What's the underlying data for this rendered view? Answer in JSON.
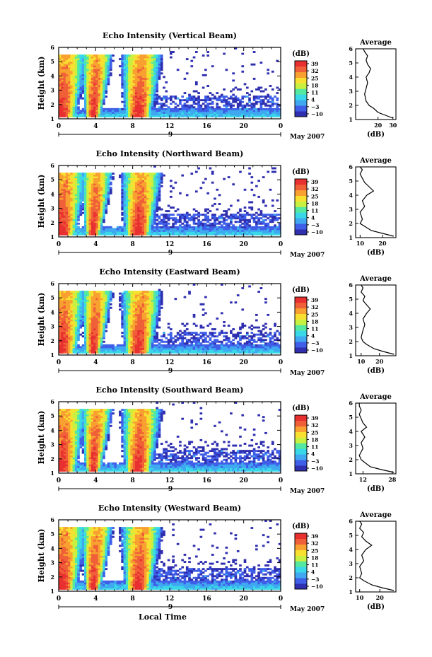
{
  "figure": {
    "date_label": "May 2007",
    "day_label": "9",
    "bottom_xlabel": "Local Time"
  },
  "colorbar": {
    "unit": "(dB)",
    "ticks": [
      "39",
      "32",
      "25",
      "18",
      "11",
      "4",
      "−3",
      "−10"
    ],
    "colors": [
      "#2f2fb0",
      "#3f5fe8",
      "#3fa8f0",
      "#38d8e8",
      "#55e8a0",
      "#c8f040",
      "#f8e030",
      "#f8a030",
      "#f06038",
      "#e83030"
    ]
  },
  "chart_data": [
    {
      "type": "heatmap",
      "title": "Echo Intensity (Vertical Beam)",
      "ylabel": "Height (km)",
      "xlabel": "",
      "x_ticks": [
        "0",
        "4",
        "8",
        "12",
        "16",
        "20",
        "0"
      ],
      "y_ticks": [
        "1",
        "2",
        "3",
        "4",
        "5",
        "6"
      ],
      "xlim": [
        0,
        24
      ],
      "ylim": [
        1,
        6
      ],
      "units": "dB",
      "clim": [
        -10,
        39
      ],
      "intense_periods_hours": [
        [
          0,
          1.5
        ],
        [
          3.5,
          4.3
        ],
        [
          7.8,
          10.2
        ]
      ],
      "profile": {
        "type": "line",
        "title": "Average",
        "xlabel": "(dB)",
        "x_ticks": [
          "20",
          "30"
        ],
        "y_ticks": [
          "1",
          "2",
          "3",
          "4",
          "5",
          "6"
        ],
        "xlim": [
          5,
          32
        ],
        "ylim": [
          1,
          6
        ],
        "x": [
          30,
          25,
          20,
          17,
          14,
          12,
          11,
          12,
          13,
          12,
          14,
          15,
          13,
          12,
          13,
          11,
          10
        ],
        "y": [
          1.1,
          1.3,
          1.5,
          1.8,
          2.0,
          2.3,
          2.8,
          3.2,
          3.6,
          4.0,
          4.3,
          4.6,
          4.9,
          5.2,
          5.5,
          5.8,
          6.0
        ]
      }
    },
    {
      "type": "heatmap",
      "title": "Echo Intensity (Northward Beam)",
      "ylabel": "Height (km)",
      "xlabel": "",
      "x_ticks": [
        "0",
        "4",
        "8",
        "12",
        "16",
        "20",
        "0"
      ],
      "y_ticks": [
        "1",
        "2",
        "3",
        "4",
        "5",
        "6"
      ],
      "xlim": [
        0,
        24
      ],
      "ylim": [
        1,
        6
      ],
      "units": "dB",
      "clim": [
        -10,
        39
      ],
      "intense_periods_hours": [
        [
          0,
          1.5
        ],
        [
          3.5,
          4.3
        ],
        [
          7.8,
          10.2
        ]
      ],
      "profile": {
        "type": "line",
        "title": "Average",
        "xlabel": "(dB)",
        "x_ticks": [
          "10",
          "20"
        ],
        "y_ticks": [
          "1",
          "2",
          "3",
          "4",
          "5",
          "6"
        ],
        "xlim": [
          8,
          26
        ],
        "ylim": [
          1,
          6
        ],
        "x": [
          25,
          20,
          15,
          12,
          10,
          11,
          10,
          12,
          11,
          13,
          16,
          14,
          12,
          11,
          10,
          11,
          10
        ],
        "y": [
          1.1,
          1.3,
          1.5,
          1.8,
          2.0,
          2.3,
          2.8,
          3.2,
          3.6,
          4.0,
          4.3,
          4.6,
          4.9,
          5.2,
          5.5,
          5.8,
          6.0
        ]
      }
    },
    {
      "type": "heatmap",
      "title": "Echo Intensity (Eastward Beam)",
      "ylabel": "Height (km)",
      "xlabel": "",
      "x_ticks": [
        "0",
        "4",
        "8",
        "12",
        "16",
        "20",
        "0"
      ],
      "y_ticks": [
        "1",
        "2",
        "3",
        "4",
        "5",
        "6"
      ],
      "xlim": [
        0,
        24
      ],
      "ylim": [
        1,
        6
      ],
      "units": "dB",
      "clim": [
        -10,
        39
      ],
      "intense_periods_hours": [
        [
          0,
          1.5
        ],
        [
          3.5,
          4.3
        ],
        [
          7.8,
          10.2
        ]
      ],
      "profile": {
        "type": "line",
        "title": "Average",
        "xlabel": "(dB)",
        "x_ticks": [
          "10",
          "20"
        ],
        "y_ticks": [
          "1",
          "2",
          "3",
          "4",
          "5",
          "6"
        ],
        "xlim": [
          7,
          29
        ],
        "ylim": [
          1,
          6
        ],
        "x": [
          28,
          22,
          17,
          13,
          11,
          10,
          11,
          12,
          11,
          13,
          15,
          13,
          11,
          12,
          10,
          11,
          10
        ],
        "y": [
          1.1,
          1.3,
          1.5,
          1.8,
          2.0,
          2.3,
          2.8,
          3.2,
          3.6,
          4.0,
          4.3,
          4.6,
          4.9,
          5.2,
          5.5,
          5.8,
          6.0
        ]
      }
    },
    {
      "type": "heatmap",
      "title": "Echo Intensity (Southward Beam)",
      "ylabel": "Height (km)",
      "xlabel": "",
      "x_ticks": [
        "0",
        "4",
        "8",
        "12",
        "16",
        "20",
        "0"
      ],
      "y_ticks": [
        "1",
        "2",
        "3",
        "4",
        "5",
        "6"
      ],
      "xlim": [
        0,
        24
      ],
      "ylim": [
        1,
        6
      ],
      "units": "dB",
      "clim": [
        -10,
        39
      ],
      "intense_periods_hours": [
        [
          0,
          1.5
        ],
        [
          3.5,
          4.3
        ],
        [
          7.8,
          10.2
        ]
      ],
      "profile": {
        "type": "line",
        "title": "Average",
        "xlabel": "(dB)",
        "x_ticks": [
          "12",
          "28"
        ],
        "y_ticks": [
          "1",
          "2",
          "3",
          "4",
          "5",
          "6"
        ],
        "xlim": [
          8,
          30
        ],
        "ylim": [
          1,
          6
        ],
        "x": [
          29,
          22,
          16,
          13,
          11,
          10,
          12,
          11,
          13,
          11,
          14,
          12,
          11,
          10,
          11,
          10,
          10
        ],
        "y": [
          1.1,
          1.3,
          1.5,
          1.8,
          2.0,
          2.3,
          2.8,
          3.2,
          3.6,
          4.0,
          4.3,
          4.6,
          4.9,
          5.2,
          5.5,
          5.8,
          6.0
        ]
      }
    },
    {
      "type": "heatmap",
      "title": "Echo Intensity (Westward Beam)",
      "ylabel": "Height (km)",
      "xlabel": "Local Time",
      "x_ticks": [
        "0",
        "4",
        "8",
        "12",
        "16",
        "20",
        "0"
      ],
      "y_ticks": [
        "1",
        "2",
        "3",
        "4",
        "5",
        "6"
      ],
      "xlim": [
        0,
        24
      ],
      "ylim": [
        1,
        6
      ],
      "units": "dB",
      "clim": [
        -10,
        39
      ],
      "intense_periods_hours": [
        [
          0,
          1.5
        ],
        [
          3.5,
          4.3
        ],
        [
          7.8,
          10.2
        ]
      ],
      "profile": {
        "type": "line",
        "title": "Average",
        "xlabel": "(dB)",
        "x_ticks": [
          "10",
          "20"
        ],
        "y_ticks": [
          "1",
          "2",
          "3",
          "4",
          "5",
          "6"
        ],
        "xlim": [
          8,
          28
        ],
        "ylim": [
          1,
          6
        ],
        "x": [
          27,
          21,
          16,
          12,
          10,
          11,
          10,
          12,
          11,
          13,
          16,
          13,
          11,
          12,
          10,
          11,
          10
        ],
        "y": [
          1.1,
          1.3,
          1.5,
          1.8,
          2.0,
          2.3,
          2.8,
          3.2,
          3.6,
          4.0,
          4.3,
          4.6,
          4.9,
          5.2,
          5.5,
          5.8,
          6.0
        ]
      }
    }
  ]
}
